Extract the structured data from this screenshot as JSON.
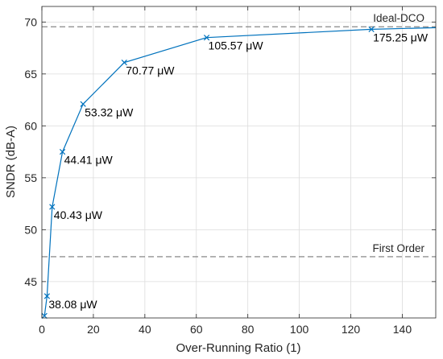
{
  "chart_data": {
    "type": "line",
    "xlabel": "Over-Running Ratio (1)",
    "ylabel": "SNDR (dB-A)",
    "xlim": [
      0,
      153
    ],
    "ylim": [
      41.5,
      71.5
    ],
    "xticks": [
      0,
      20,
      40,
      60,
      80,
      100,
      120,
      140
    ],
    "yticks": [
      45,
      50,
      55,
      60,
      65,
      70
    ],
    "grid": true,
    "series": [
      {
        "color": "#0072BD",
        "marker": "x",
        "x": [
          1,
          2,
          4,
          8,
          16,
          32,
          64,
          128,
          153
        ],
        "y": [
          41.7,
          43.6,
          52.2,
          57.5,
          62.1,
          66.1,
          68.5,
          69.3,
          69.45
        ],
        "marked": [
          true,
          true,
          true,
          true,
          true,
          true,
          true,
          true,
          false
        ]
      }
    ],
    "annotations": [
      {
        "text": "38.08  μW",
        "x": 2,
        "y": 43.6
      },
      {
        "text": "40.43  μW",
        "x": 4,
        "y": 52.2
      },
      {
        "text": "44.41  μW",
        "x": 8,
        "y": 57.5
      },
      {
        "text": "53.32  μW",
        "x": 16,
        "y": 62.1
      },
      {
        "text": "70.77  μW",
        "x": 32,
        "y": 66.1
      },
      {
        "text": "105.57  μW",
        "x": 64,
        "y": 68.5
      },
      {
        "text": "175.25  μW",
        "x": 128,
        "y": 69.3
      }
    ],
    "reference_lines": [
      {
        "label": "Ideal-DCO",
        "y": 69.55
      },
      {
        "label": "First Order",
        "y": 47.4
      }
    ]
  }
}
